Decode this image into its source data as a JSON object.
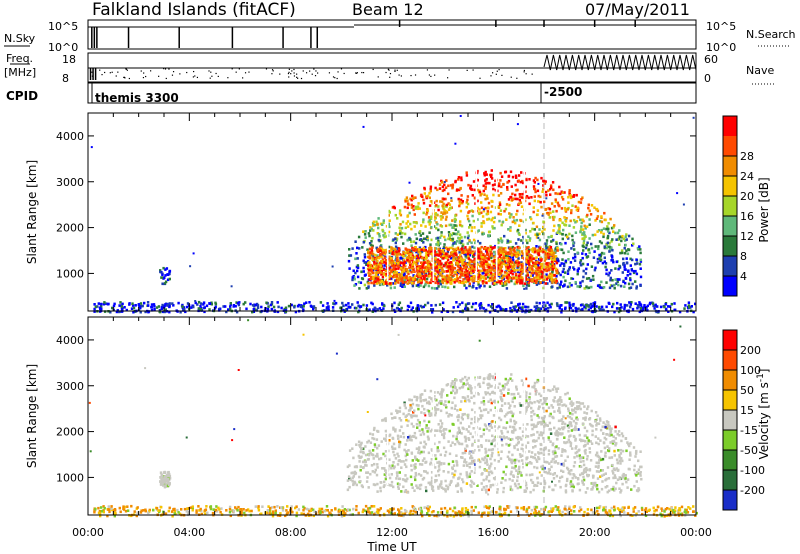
{
  "header": {
    "station": "Falkland Islands (fitACF)",
    "beam": "Beam 12",
    "date": "07/May/2011"
  },
  "param_panel": {
    "nsky_label": "N.Sky",
    "nsky_ticks": [
      "10^5",
      "10^0"
    ],
    "nsearch_label": "N.Search",
    "nsearch_ticks": [
      "10^5",
      "10^0"
    ],
    "freq_label": "Freq.",
    "freq_unit": "[MHz]",
    "freq_ticks": [
      "18",
      "8"
    ],
    "nave_label": "Nave",
    "nave_ticks": [
      "60",
      "0"
    ],
    "cpid_label": "CPID",
    "cpid_entries": [
      {
        "text": "themis 3300",
        "time": 0.0
      },
      {
        "text": "-2500",
        "time": 18.0
      }
    ]
  },
  "chart_data": [
    {
      "type": "heatmap",
      "name": "Power",
      "ylabel": "Slant Range [km]",
      "ylim": [
        180,
        4500
      ],
      "yticks": [
        1000,
        2000,
        3000,
        4000
      ],
      "xlim": [
        0,
        24
      ],
      "colorbar": {
        "label": "Power [dB]",
        "range": [
          0,
          32
        ],
        "ticks": [
          "4",
          "8",
          "12",
          "16",
          "20",
          "24",
          "28"
        ],
        "colors": [
          "#0000ff",
          "#1e3fb0",
          "#2a7a3a",
          "#5fb87a",
          "#a6d62a",
          "#f5c400",
          "#f08c00",
          "#ff4a00",
          "#ff0000"
        ]
      },
      "regions": [
        {
          "t": [
            2.8,
            3.2
          ],
          "r": [
            800,
            1150
          ],
          "level": "low"
        },
        {
          "t": [
            0.2,
            24.0
          ],
          "r": [
            180,
            400
          ],
          "level": "low"
        },
        {
          "t": [
            10.2,
            21.8
          ],
          "r": [
            700,
            3300
          ],
          "level": "mixed"
        },
        {
          "t": [
            11.0,
            18.5
          ],
          "r": [
            800,
            1600
          ],
          "level": "high"
        }
      ]
    },
    {
      "type": "heatmap",
      "name": "Velocity",
      "ylabel": "Slant Range [km]",
      "ylim": [
        180,
        4500
      ],
      "yticks": [
        1000,
        2000,
        3000,
        4000
      ],
      "xlim": [
        0,
        24
      ],
      "xticks": [
        "00:00",
        "04:00",
        "08:00",
        "12:00",
        "16:00",
        "20:00",
        "00:00"
      ],
      "xlabel": "Time UT",
      "colorbar": {
        "label": "Velocity [m s",
        "label_sup": "-1",
        "label_end": "]",
        "ticks": [
          "200",
          "100",
          "50",
          "15",
          "-15",
          "-50",
          "-100",
          "-200"
        ],
        "colors": [
          "#1a2ec8",
          "#2a6e3a",
          "#3a8c2a",
          "#7ccc2a",
          "#c8c8c0",
          "#f5c400",
          "#f08c00",
          "#ff4a00",
          "#ff0000"
        ]
      },
      "regions": [
        {
          "t": [
            2.8,
            3.2
          ],
          "r": [
            800,
            1150
          ],
          "level": "ground"
        },
        {
          "t": [
            0.2,
            24.0
          ],
          "r": [
            180,
            400
          ],
          "level": "low-positive"
        },
        {
          "t": [
            10.2,
            21.8
          ],
          "r": [
            700,
            3300
          ],
          "level": "ground"
        }
      ]
    }
  ],
  "colors": {
    "dashed_marker": "#bbbbbb"
  }
}
